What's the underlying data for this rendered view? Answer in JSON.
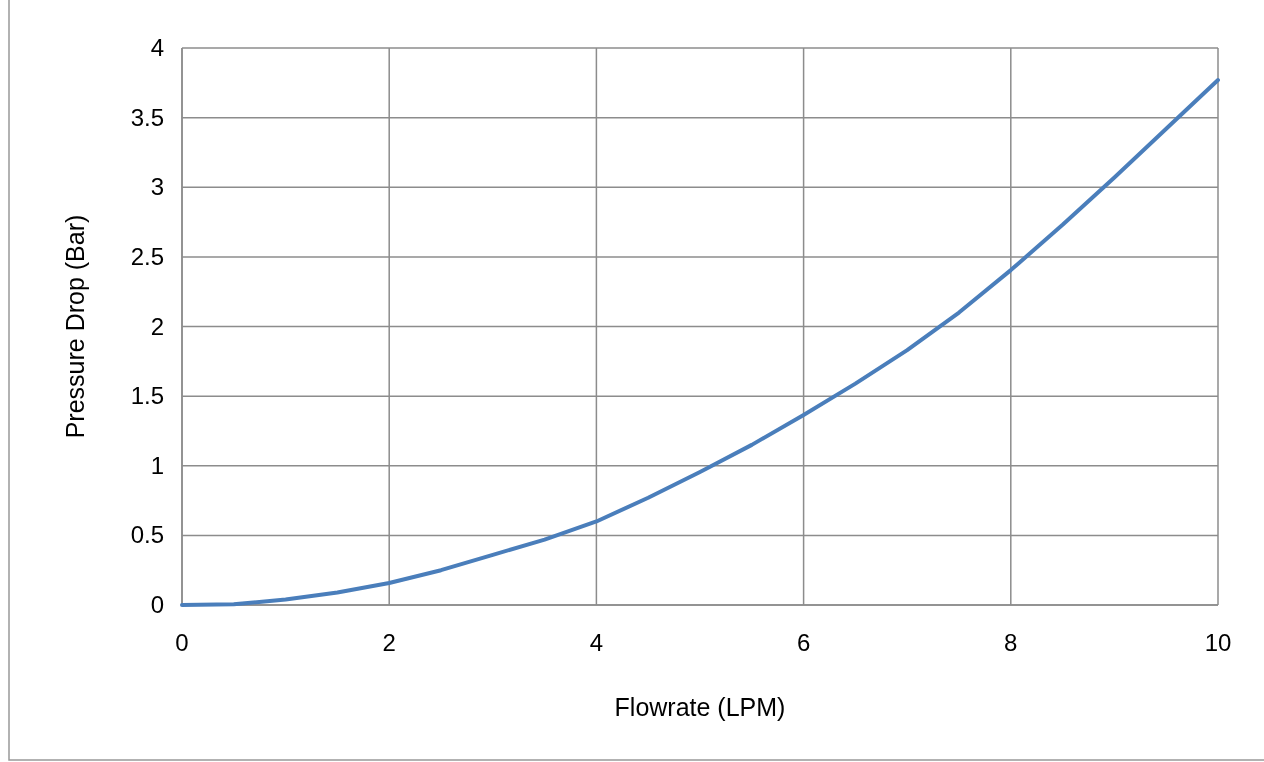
{
  "chart_data": {
    "type": "line",
    "xlabel": "Flowrate (LPM)",
    "ylabel": "Pressure Drop (Bar)",
    "x": [
      0,
      0.5,
      1,
      1.5,
      2,
      2.5,
      3,
      3.5,
      4,
      4.5,
      5,
      5.5,
      6,
      6.5,
      7,
      7.5,
      8,
      8.5,
      9,
      9.5,
      10
    ],
    "series": [
      {
        "color": "#4a7ebb",
        "values": [
          0,
          0.005,
          0.04,
          0.09,
          0.158,
          0.25,
          0.36,
          0.47,
          0.6,
          0.77,
          0.955,
          1.15,
          1.365,
          1.59,
          1.83,
          2.1,
          2.405,
          2.73,
          3.07,
          3.42,
          3.77
        ]
      }
    ],
    "xlim": [
      0,
      10
    ],
    "xticks": [
      0,
      2,
      4,
      6,
      8,
      10
    ],
    "ylim": [
      0,
      4
    ],
    "yticks": [
      0,
      0.5,
      1,
      1.5,
      2,
      2.5,
      3,
      3.5,
      4
    ],
    "grid": true,
    "marker": "none",
    "line_style": "solid"
  }
}
